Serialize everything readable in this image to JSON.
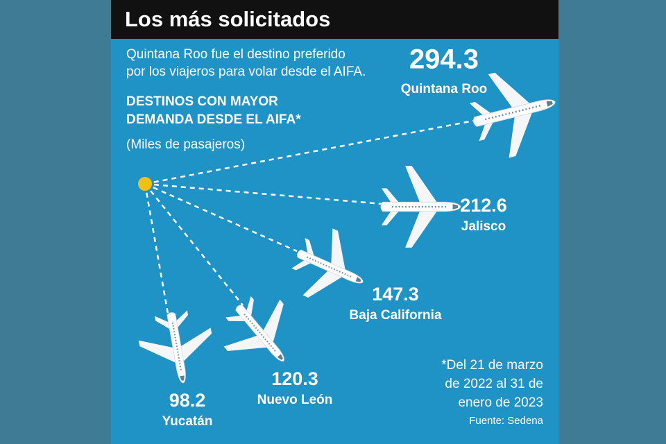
{
  "header": {
    "title": "Los más solicitados"
  },
  "intro": [
    "Quintana Roo fue el destino preferido",
    "por los viajeros para volar desde el AIFA."
  ],
  "subtitle": [
    "DESTINOS CON MAYOR",
    "DEMANDA DESDE EL AIFA*"
  ],
  "unit": "(Miles de pasajeros)",
  "destinations": [
    {
      "value": 294.3,
      "name": "Quintana Roo"
    },
    {
      "value": 212.6,
      "name": "Jalisco"
    },
    {
      "value": 147.3,
      "name": "Baja California"
    },
    {
      "value": 120.3,
      "name": "Nuevo León"
    },
    {
      "value": 98.2,
      "name": "Yucatán"
    }
  ],
  "note": [
    "*Del 21 de marzo",
    "de 2022 al 31 de",
    "enero de 2023"
  ],
  "source": "Fuente: Sedena"
}
